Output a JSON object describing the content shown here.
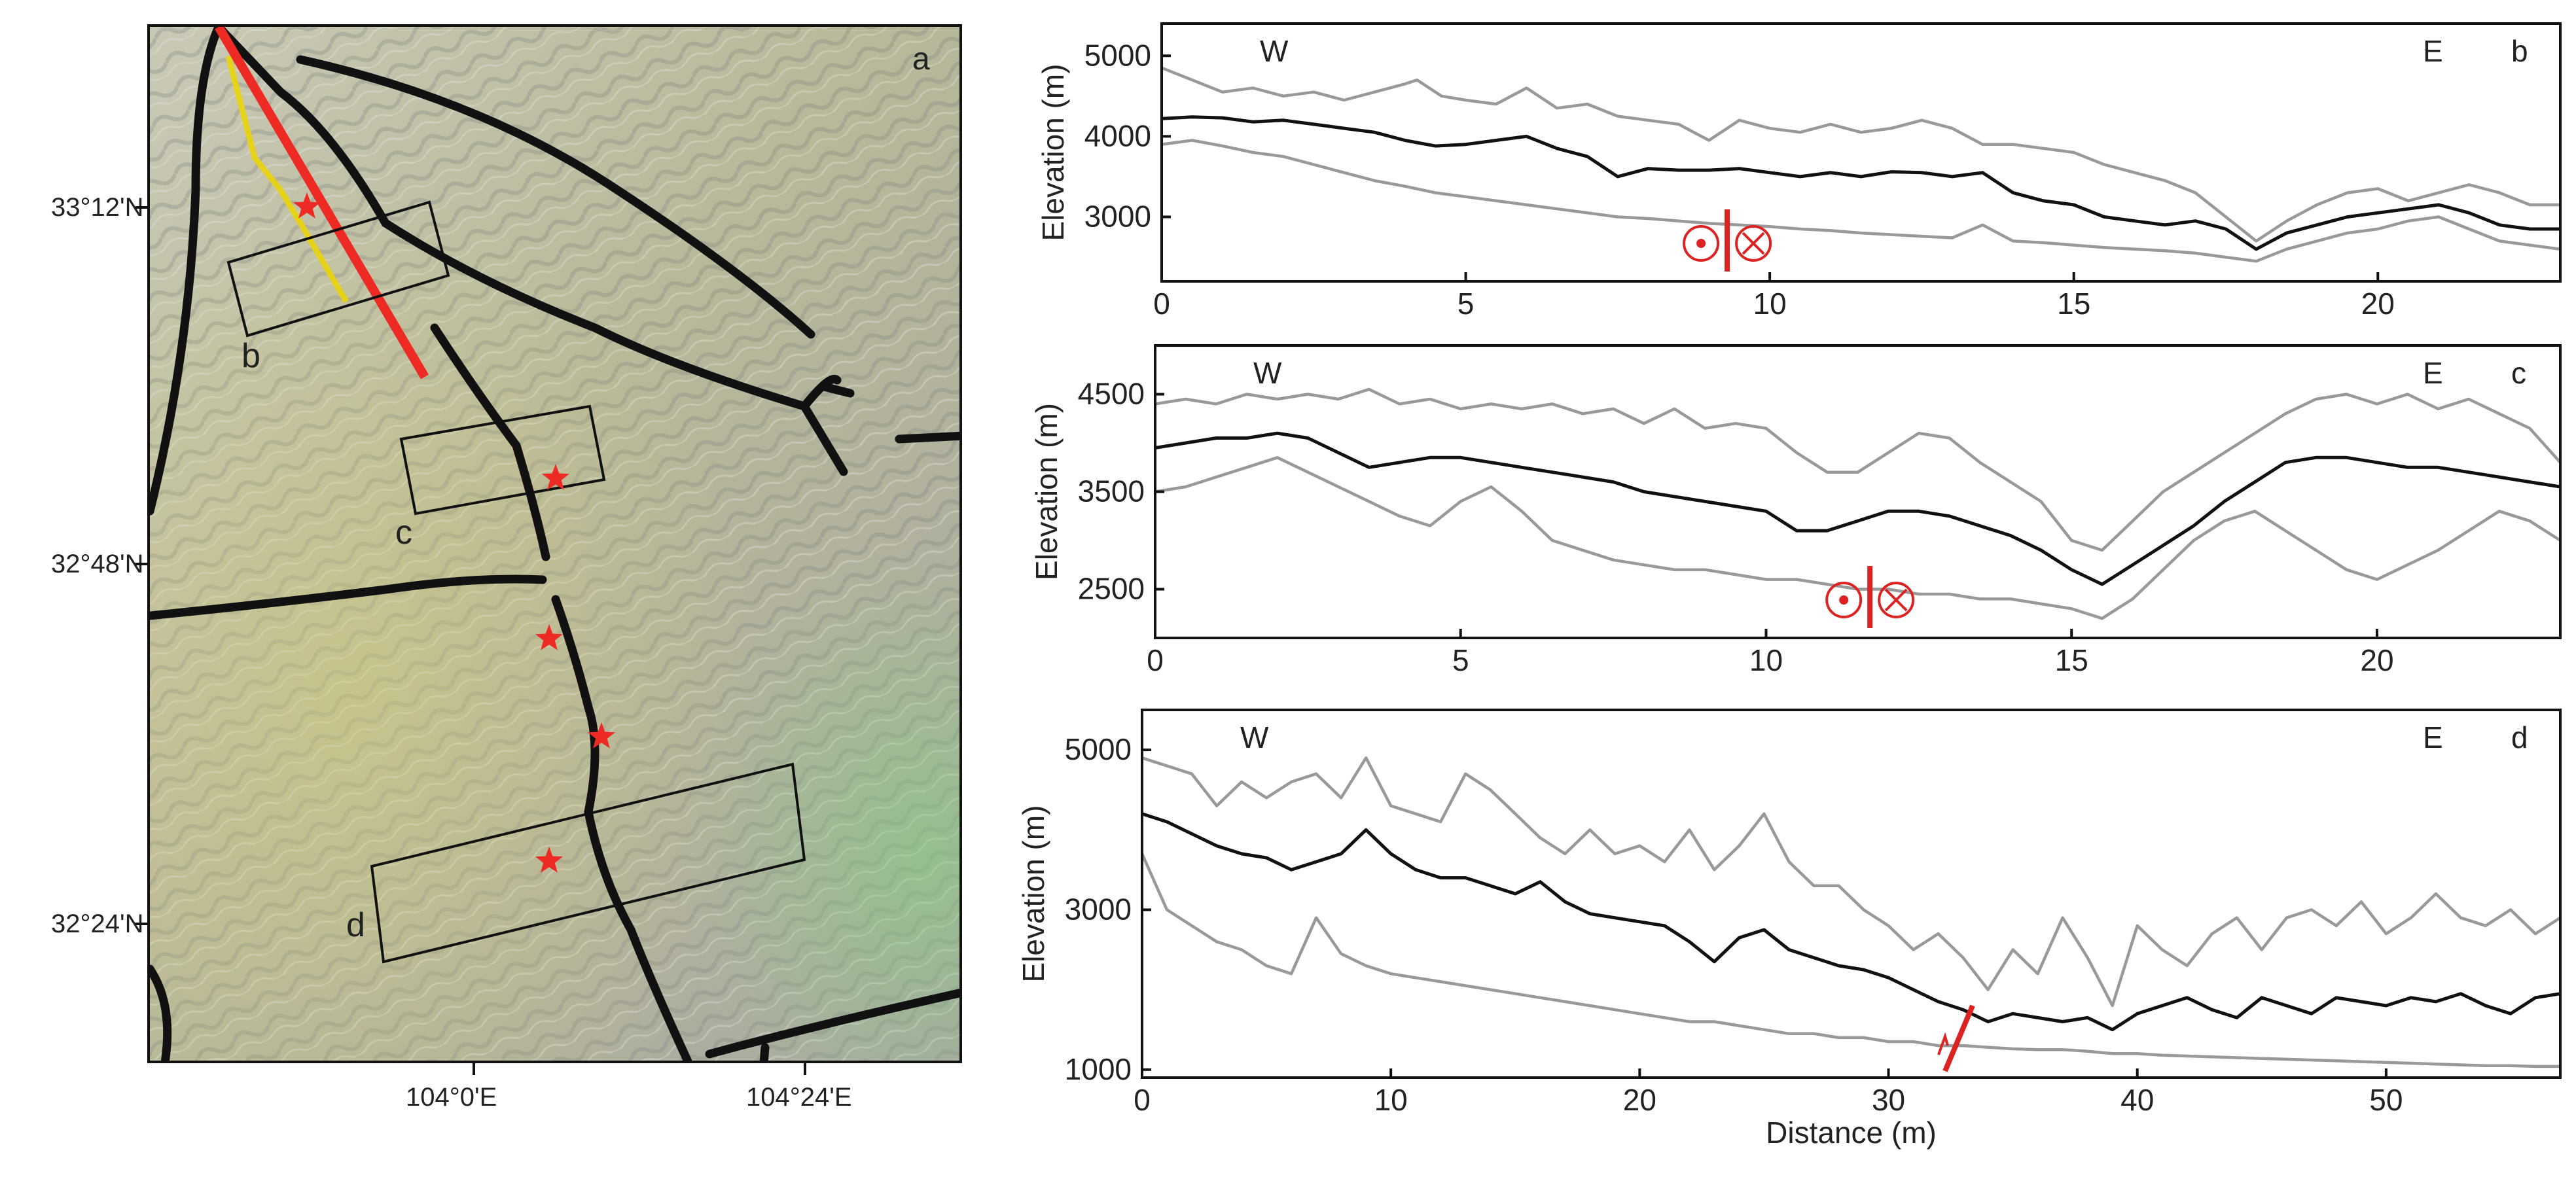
{
  "map": {
    "panel_letter": "a",
    "lat_labels": [
      "33°12'N",
      "32°48'N",
      "32°24'N"
    ],
    "lon_labels": [
      "104°0'E",
      "104°24'E"
    ],
    "box_labels": [
      "b",
      "c",
      "d"
    ],
    "colors": {
      "fault": "#111111",
      "surface_rupture": "#ee2a24",
      "rupture_secondary": "#e6d21a",
      "epicenter": "#ee2a24"
    }
  },
  "chart_data": [
    {
      "type": "line",
      "panel_letter": "b",
      "ylabel": "Elevation (m)",
      "xlabel": "",
      "xlim": [
        0,
        23
      ],
      "ylim": [
        2200,
        5400
      ],
      "yticks": [
        3000,
        4000,
        5000
      ],
      "xticks": [
        0,
        5,
        10,
        15,
        20
      ],
      "direction_left": "W",
      "direction_right": "E",
      "fault_symbol": "strike-slip",
      "fault_x": 9.3,
      "series": [
        {
          "role": "max",
          "color": "#999999",
          "x": [
            0,
            0.5,
            1,
            1.5,
            2,
            2.5,
            3,
            3.5,
            4,
            4.2,
            4.6,
            5,
            5.5,
            6,
            6.2,
            6.5,
            7,
            7.5,
            8,
            8.5,
            9,
            9.5,
            10,
            10.5,
            11,
            11.5,
            12,
            12.5,
            13,
            13.5,
            14,
            14.5,
            15,
            15.5,
            16,
            16.5,
            17,
            17.5,
            18,
            18.5,
            19,
            19.5,
            20,
            20.5,
            21,
            21.5,
            22,
            22.5,
            23
          ],
          "y": [
            4850,
            4700,
            4550,
            4600,
            4500,
            4550,
            4450,
            4550,
            4650,
            4700,
            4500,
            4450,
            4400,
            4600,
            4500,
            4350,
            4400,
            4250,
            4200,
            4150,
            3950,
            4200,
            4100,
            4050,
            4150,
            4050,
            4100,
            4200,
            4100,
            3900,
            3900,
            3850,
            3800,
            3650,
            3550,
            3450,
            3300,
            3000,
            2700,
            2950,
            3150,
            3300,
            3350,
            3200,
            3300,
            3400,
            3300,
            3150,
            3150
          ]
        },
        {
          "role": "mean",
          "color": "#111111",
          "x": [
            0,
            0.5,
            1,
            1.5,
            2,
            2.5,
            3,
            3.5,
            4,
            4.5,
            5,
            5.5,
            6,
            6.5,
            7,
            7.5,
            8,
            8.5,
            9,
            9.5,
            10,
            10.5,
            11,
            11.5,
            12,
            12.5,
            13,
            13.5,
            14,
            14.5,
            15,
            15.5,
            16,
            16.5,
            17,
            17.5,
            18,
            18.5,
            19,
            19.5,
            20,
            20.5,
            21,
            21.5,
            22,
            22.5,
            23
          ],
          "y": [
            4220,
            4240,
            4230,
            4180,
            4200,
            4150,
            4100,
            4050,
            3950,
            3880,
            3900,
            3950,
            4000,
            3850,
            3750,
            3500,
            3600,
            3580,
            3580,
            3600,
            3550,
            3500,
            3550,
            3500,
            3560,
            3550,
            3500,
            3550,
            3300,
            3200,
            3150,
            3000,
            2950,
            2900,
            2950,
            2850,
            2600,
            2800,
            2900,
            3000,
            3050,
            3100,
            3150,
            3050,
            2900,
            2850,
            2850
          ]
        },
        {
          "role": "min",
          "color": "#999999",
          "x": [
            0,
            0.5,
            1,
            1.5,
            2,
            2.5,
            3,
            3.5,
            4,
            4.5,
            5,
            5.5,
            6,
            6.5,
            7,
            7.5,
            8,
            8.5,
            9,
            9.5,
            10,
            10.5,
            11,
            11.5,
            12,
            12.5,
            13,
            13.5,
            14,
            14.5,
            15,
            15.5,
            16,
            16.5,
            17,
            17.5,
            18,
            18.5,
            19,
            19.5,
            20,
            20.5,
            21,
            21.5,
            22,
            22.5,
            23
          ],
          "y": [
            3900,
            3950,
            3880,
            3800,
            3750,
            3650,
            3550,
            3450,
            3380,
            3300,
            3250,
            3200,
            3150,
            3100,
            3050,
            3000,
            2980,
            2950,
            2920,
            2900,
            2880,
            2850,
            2830,
            2800,
            2780,
            2760,
            2740,
            2900,
            2700,
            2680,
            2650,
            2620,
            2600,
            2580,
            2550,
            2500,
            2450,
            2600,
            2700,
            2800,
            2850,
            2950,
            3000,
            2850,
            2700,
            2650,
            2600
          ]
        }
      ]
    },
    {
      "type": "line",
      "panel_letter": "c",
      "ylabel": "Elevation (m)",
      "xlabel": "",
      "xlim": [
        0,
        23
      ],
      "ylim": [
        2000,
        5000
      ],
      "yticks": [
        2500,
        3500,
        4500
      ],
      "xticks": [
        0,
        5,
        10,
        15,
        20
      ],
      "direction_left": "W",
      "direction_right": "E",
      "fault_symbol": "strike-slip",
      "fault_x": 11.7,
      "series": [
        {
          "role": "max",
          "color": "#999999",
          "x": [
            0,
            0.5,
            1,
            1.5,
            2,
            2.5,
            3,
            3.5,
            4,
            4.5,
            5,
            5.5,
            6,
            6.5,
            7,
            7.5,
            8,
            8.5,
            9,
            9.5,
            10,
            10.5,
            11,
            11.5,
            12,
            12.5,
            13,
            13.5,
            14,
            14.5,
            15,
            15.5,
            16,
            16.5,
            17,
            17.5,
            18,
            18.5,
            19,
            19.5,
            20,
            20.5,
            21,
            21.5,
            22,
            22.5,
            23
          ],
          "y": [
            4400,
            4450,
            4400,
            4500,
            4450,
            4500,
            4450,
            4550,
            4400,
            4450,
            4350,
            4400,
            4350,
            4400,
            4300,
            4350,
            4200,
            4350,
            4150,
            4200,
            4150,
            3900,
            3700,
            3700,
            3900,
            4100,
            4050,
            3800,
            3600,
            3400,
            3000,
            2900,
            3200,
            3500,
            3700,
            3900,
            4100,
            4300,
            4450,
            4500,
            4400,
            4500,
            4350,
            4450,
            4300,
            4150,
            3800
          ]
        },
        {
          "role": "mean",
          "color": "#111111",
          "x": [
            0,
            0.5,
            1,
            1.5,
            2,
            2.5,
            3,
            3.5,
            4,
            4.5,
            5,
            5.5,
            6,
            6.5,
            7,
            7.5,
            8,
            8.5,
            9,
            9.5,
            10,
            10.5,
            11,
            11.5,
            12,
            12.5,
            13,
            13.5,
            14,
            14.5,
            15,
            15.5,
            16,
            16.5,
            17,
            17.5,
            18,
            18.5,
            19,
            19.5,
            20,
            20.5,
            21,
            21.5,
            22,
            22.5,
            23
          ],
          "y": [
            3950,
            4000,
            4050,
            4050,
            4100,
            4050,
            3900,
            3750,
            3800,
            3850,
            3850,
            3800,
            3750,
            3700,
            3650,
            3600,
            3500,
            3450,
            3400,
            3350,
            3300,
            3100,
            3100,
            3200,
            3300,
            3300,
            3250,
            3150,
            3050,
            2900,
            2700,
            2550,
            2750,
            2950,
            3150,
            3400,
            3600,
            3800,
            3850,
            3850,
            3800,
            3750,
            3750,
            3700,
            3650,
            3600,
            3550
          ]
        },
        {
          "role": "min",
          "color": "#999999",
          "x": [
            0,
            0.5,
            1,
            1.5,
            2,
            2.5,
            3,
            3.5,
            4,
            4.5,
            5,
            5.5,
            6,
            6.5,
            7,
            7.5,
            8,
            8.5,
            9,
            9.5,
            10,
            10.5,
            11,
            11.5,
            12,
            12.5,
            13,
            13.5,
            14,
            14.5,
            15,
            15.5,
            16,
            16.5,
            17,
            17.5,
            18,
            18.5,
            19,
            19.5,
            20,
            20.5,
            21,
            21.5,
            22,
            22.5,
            23
          ],
          "y": [
            3500,
            3550,
            3650,
            3750,
            3850,
            3700,
            3550,
            3400,
            3250,
            3150,
            3400,
            3550,
            3300,
            3000,
            2900,
            2800,
            2750,
            2700,
            2700,
            2650,
            2600,
            2600,
            2550,
            2500,
            2500,
            2450,
            2450,
            2400,
            2400,
            2350,
            2300,
            2200,
            2400,
            2700,
            3000,
            3200,
            3300,
            3100,
            2900,
            2700,
            2600,
            2750,
            2900,
            3100,
            3300,
            3200,
            3000
          ]
        }
      ]
    },
    {
      "type": "line",
      "panel_letter": "d",
      "ylabel": "Elevation (m)",
      "xlabel": "Distance (m)",
      "xlim": [
        0,
        57
      ],
      "ylim": [
        900,
        5500
      ],
      "yticks": [
        1000,
        3000,
        5000
      ],
      "xticks": [
        0,
        10,
        20,
        30,
        40,
        50
      ],
      "direction_left": "W",
      "direction_right": "E",
      "fault_symbol": "thrust",
      "fault_x": 32.8,
      "series": [
        {
          "role": "max",
          "color": "#999999",
          "x": [
            0,
            1,
            2,
            3,
            4,
            5,
            6,
            7,
            8,
            9,
            10,
            11,
            12,
            13,
            14,
            15,
            16,
            17,
            18,
            19,
            20,
            21,
            22,
            23,
            24,
            25,
            26,
            27,
            28,
            29,
            30,
            31,
            32,
            33,
            34,
            35,
            36,
            37,
            38,
            39,
            40,
            41,
            42,
            43,
            44,
            45,
            46,
            47,
            48,
            49,
            50,
            51,
            52,
            53,
            54,
            55,
            56,
            57
          ],
          "y": [
            4900,
            4800,
            4700,
            4300,
            4600,
            4400,
            4600,
            4700,
            4400,
            4900,
            4300,
            4200,
            4100,
            4700,
            4500,
            4200,
            3900,
            3700,
            4000,
            3700,
            3800,
            3600,
            4000,
            3500,
            3800,
            4200,
            3600,
            3300,
            3300,
            3000,
            2800,
            2500,
            2700,
            2400,
            2000,
            2500,
            2200,
            2900,
            2400,
            1800,
            2800,
            2500,
            2300,
            2700,
            2900,
            2500,
            2900,
            3000,
            2800,
            3100,
            2700,
            2900,
            3200,
            2900,
            2800,
            3000,
            2700,
            2900
          ]
        },
        {
          "role": "mean",
          "color": "#111111",
          "x": [
            0,
            1,
            2,
            3,
            4,
            5,
            6,
            7,
            8,
            9,
            10,
            11,
            12,
            13,
            14,
            15,
            16,
            17,
            18,
            19,
            20,
            21,
            22,
            23,
            24,
            25,
            26,
            27,
            28,
            29,
            30,
            31,
            32,
            33,
            34,
            35,
            36,
            37,
            38,
            39,
            40,
            41,
            42,
            43,
            44,
            45,
            46,
            47,
            48,
            49,
            50,
            51,
            52,
            53,
            54,
            55,
            56,
            57
          ],
          "y": [
            4200,
            4100,
            3950,
            3800,
            3700,
            3650,
            3500,
            3600,
            3700,
            4000,
            3700,
            3500,
            3400,
            3400,
            3300,
            3200,
            3350,
            3100,
            2950,
            2900,
            2850,
            2800,
            2600,
            2350,
            2650,
            2750,
            2500,
            2400,
            2300,
            2250,
            2150,
            2000,
            1850,
            1750,
            1600,
            1700,
            1650,
            1600,
            1650,
            1500,
            1700,
            1800,
            1900,
            1750,
            1650,
            1900,
            1800,
            1700,
            1900,
            1850,
            1800,
            1900,
            1850,
            1950,
            1800,
            1700,
            1900,
            1950
          ]
        },
        {
          "role": "min",
          "color": "#999999",
          "x": [
            0,
            1,
            2,
            3,
            4,
            5,
            6,
            7,
            8,
            9,
            10,
            11,
            12,
            13,
            14,
            15,
            16,
            17,
            18,
            19,
            20,
            21,
            22,
            23,
            24,
            25,
            26,
            27,
            28,
            29,
            30,
            31,
            32,
            33,
            34,
            35,
            36,
            37,
            38,
            39,
            40,
            41,
            42,
            43,
            44,
            45,
            46,
            47,
            48,
            49,
            50,
            51,
            52,
            53,
            54,
            55,
            56,
            57
          ],
          "y": [
            3700,
            3000,
            2800,
            2600,
            2500,
            2300,
            2200,
            2900,
            2450,
            2300,
            2200,
            2150,
            2100,
            2050,
            2000,
            1950,
            1900,
            1850,
            1800,
            1750,
            1700,
            1650,
            1600,
            1600,
            1550,
            1500,
            1450,
            1450,
            1400,
            1400,
            1350,
            1350,
            1300,
            1300,
            1280,
            1260,
            1250,
            1250,
            1230,
            1200,
            1200,
            1180,
            1170,
            1160,
            1150,
            1140,
            1130,
            1120,
            1110,
            1100,
            1090,
            1080,
            1070,
            1060,
            1050,
            1050,
            1040,
            1040
          ]
        }
      ]
    }
  ]
}
